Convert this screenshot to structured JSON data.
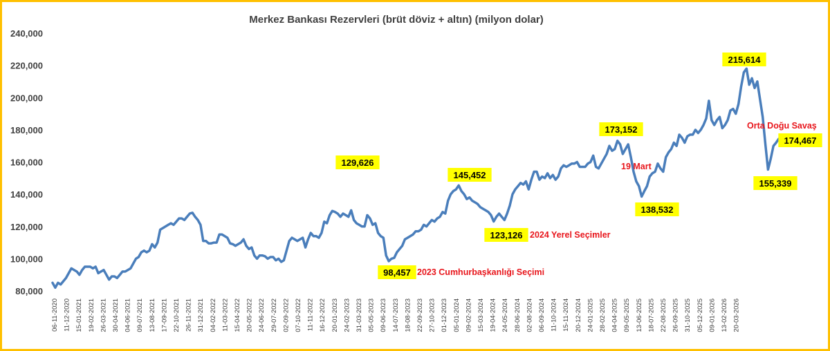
{
  "chart_data": {
    "type": "line",
    "title": "Merkez Bankası Rezervleri (brüt döviz + altın) (milyon dolar)",
    "xlabel": "",
    "ylabel": "",
    "ylim": [
      80000,
      240000
    ],
    "yticks": [
      "80,000",
      "100,000",
      "120,000",
      "140,000",
      "160,000",
      "180,000",
      "200,000",
      "220,000",
      "240,000"
    ],
    "ytick_values": [
      80000,
      100000,
      120000,
      140000,
      160000,
      180000,
      200000,
      220000,
      240000
    ],
    "xticks": [
      "06-11-2020",
      "11-12-2020",
      "15-01-2021",
      "19-02-2021",
      "26-03-2021",
      "30-04-2021",
      "04-06-2021",
      "09-07-2021",
      "13-08-2021",
      "17-09-2021",
      "22-10-2021",
      "26-11-2021",
      "31-12-2021",
      "04-02-2022",
      "11-03-2022",
      "15-04-2022",
      "20-05-2022",
      "24-06-2022",
      "29-07-2022",
      "02-09-2022",
      "07-10-2022",
      "11-11-2022",
      "16-12-2022",
      "20-01-2023",
      "24-02-2023",
      "31-03-2023",
      "05-05-2023",
      "09-06-2023",
      "14-07-2023",
      "18-08-2023",
      "22-09-2023",
      "27-10-2023",
      "01-12-2023",
      "05-01-2024",
      "09-02-2024",
      "15-03-2024",
      "19-04-2024",
      "24-05-2024",
      "28-06-2024",
      "02-08-2024",
      "06-09-2024",
      "11-10-2024",
      "15-11-2024",
      "20-12-2024",
      "24-01-2025",
      "28-02-2025",
      "04-04-2025",
      "09-05-2025",
      "13-06-2025",
      "18-07-2025",
      "22-08-2025",
      "26-09-2025",
      "31-10-2025",
      "05-12-2025",
      "09-01-2026",
      "13-02-2026",
      "20-03-2026"
    ],
    "grid": false,
    "legend": "none",
    "line_color": "#4a7ebb",
    "label_bg_color": "#ffff00",
    "annotation_color": "#e8151b",
    "series": [
      {
        "values": [
          85000,
          82000,
          85000,
          84000,
          86000,
          88000,
          91000,
          94000,
          93000,
          92000,
          90000,
          93000,
          95000,
          95000,
          95000,
          94000,
          95000,
          91000,
          92000,
          93000,
          90000,
          87000,
          89000,
          89000,
          88000,
          90000,
          92000,
          92000,
          93000,
          94000,
          97000,
          100000,
          101000,
          104000,
          105000,
          104000,
          105000,
          109000,
          107000,
          110000,
          118000,
          119000,
          120000,
          121000,
          122000,
          121000,
          123000,
          125000,
          125000,
          124000,
          126000,
          128000,
          128500,
          126000,
          124000,
          121000,
          111000,
          111000,
          109500,
          109500,
          110000,
          110000,
          115000,
          115000,
          114000,
          113000,
          109500,
          109000,
          108000,
          109000,
          110000,
          112000,
          108000,
          106000,
          107000,
          102000,
          100000,
          102000,
          102000,
          101500,
          100000,
          101000,
          101000,
          99000,
          100000,
          98000,
          99000,
          105000,
          111000,
          113000,
          112000,
          111000,
          112000,
          113000,
          107000,
          112000,
          116000,
          114000,
          114000,
          113000,
          116000,
          123000,
          122000,
          127000,
          129626,
          129000,
          128000,
          126000,
          128000,
          127000,
          126000,
          130000,
          124000,
          122000,
          121000,
          120000,
          120000,
          127000,
          125000,
          121000,
          122000,
          116000,
          114000,
          113000,
          102000,
          98457,
          100000,
          100500,
          104000,
          106000,
          108000,
          112000,
          113000,
          114000,
          115000,
          117000,
          117000,
          118000,
          121000,
          120000,
          122000,
          124000,
          123000,
          125000,
          126000,
          129000,
          128000,
          136000,
          140000,
          142000,
          143000,
          145452,
          142000,
          140000,
          137000,
          138000,
          136000,
          135000,
          134000,
          132000,
          131000,
          130000,
          129000,
          127000,
          123126,
          126000,
          128000,
          126000,
          124000,
          128000,
          133000,
          140000,
          143000,
          145000,
          147000,
          146000,
          148000,
          143000,
          149000,
          154000,
          154000,
          149000,
          151000,
          150000,
          153000,
          150000,
          152000,
          149000,
          151000,
          156000,
          158000,
          157000,
          158000,
          159000,
          159000,
          160000,
          157000,
          157000,
          157000,
          159000,
          160000,
          164000,
          157000,
          156000,
          159000,
          162000,
          165000,
          170000,
          167000,
          168000,
          173152,
          171000,
          165000,
          168000,
          171000,
          163000,
          154000,
          148000,
          145000,
          138532,
          142000,
          145000,
          151000,
          153000,
          154000,
          159000,
          156000,
          154000,
          163000,
          166000,
          168000,
          172000,
          170000,
          177000,
          175000,
          172000,
          176000,
          177000,
          177000,
          180000,
          178000,
          180000,
          183000,
          187000,
          198000,
          186000,
          183000,
          186000,
          188000,
          181000,
          183000,
          186000,
          192000,
          193000,
          190000,
          196000,
          207000,
          215614,
          218000,
          208000,
          212000,
          206000,
          210000,
          199000,
          188000,
          171000,
          155339,
          162000,
          170000,
          172000,
          174467
        ]
      }
    ],
    "data_labels": [
      {
        "text": "129,626",
        "value": 129626
      },
      {
        "text": "98,457",
        "value": 98457
      },
      {
        "text": "145,452",
        "value": 145452
      },
      {
        "text": "123,126",
        "value": 123126
      },
      {
        "text": "173,152",
        "value": 173152
      },
      {
        "text": "138,532",
        "value": 138532
      },
      {
        "text": "215,614",
        "value": 215614
      },
      {
        "text": "155,339",
        "value": 155339
      },
      {
        "text": "174,467",
        "value": 174467
      }
    ],
    "annotations": [
      "2023 Cumhurbaşkanlığı Seçimi",
      "2024 Yerel Seçimler",
      "19 Mart",
      "Orta Doğu Savaş"
    ]
  }
}
